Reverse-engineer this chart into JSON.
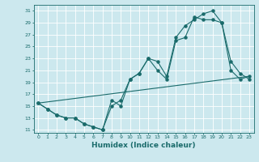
{
  "title": "",
  "xlabel": "Humidex (Indice chaleur)",
  "bg_color": "#cce8ee",
  "grid_color": "#ffffff",
  "line_color": "#1a6b6b",
  "xlim": [
    -0.5,
    23.5
  ],
  "ylim": [
    10.5,
    32
  ],
  "xticks": [
    0,
    1,
    2,
    3,
    4,
    5,
    6,
    7,
    8,
    9,
    10,
    11,
    12,
    13,
    14,
    15,
    16,
    17,
    18,
    19,
    20,
    21,
    22,
    23
  ],
  "yticks": [
    11,
    13,
    15,
    17,
    19,
    21,
    23,
    25,
    27,
    29,
    31
  ],
  "series1_x": [
    0,
    1,
    2,
    3,
    4,
    5,
    6,
    7,
    8,
    9,
    10,
    11,
    12,
    13,
    14,
    15,
    16,
    17,
    18,
    19,
    20,
    21,
    22,
    23
  ],
  "series1_y": [
    15.5,
    14.5,
    13.5,
    13.0,
    13.0,
    12.0,
    11.5,
    11.0,
    15.0,
    16.0,
    19.5,
    20.5,
    23.0,
    21.0,
    19.5,
    26.0,
    26.5,
    30.0,
    29.5,
    29.5,
    29.0,
    21.0,
    19.5,
    20.0
  ],
  "series2_x": [
    0,
    1,
    2,
    3,
    4,
    5,
    6,
    7,
    8,
    9,
    10,
    11,
    12,
    13,
    14,
    15,
    16,
    17,
    18,
    19,
    20,
    21,
    22,
    23
  ],
  "series2_y": [
    15.5,
    14.5,
    13.5,
    13.0,
    13.0,
    12.0,
    11.5,
    11.0,
    16.0,
    15.0,
    19.5,
    20.5,
    23.0,
    22.5,
    20.0,
    26.5,
    28.5,
    29.5,
    30.5,
    31.0,
    29.0,
    22.5,
    20.5,
    19.5
  ],
  "series3_x": [
    0,
    23
  ],
  "series3_y": [
    15.5,
    20.0
  ]
}
